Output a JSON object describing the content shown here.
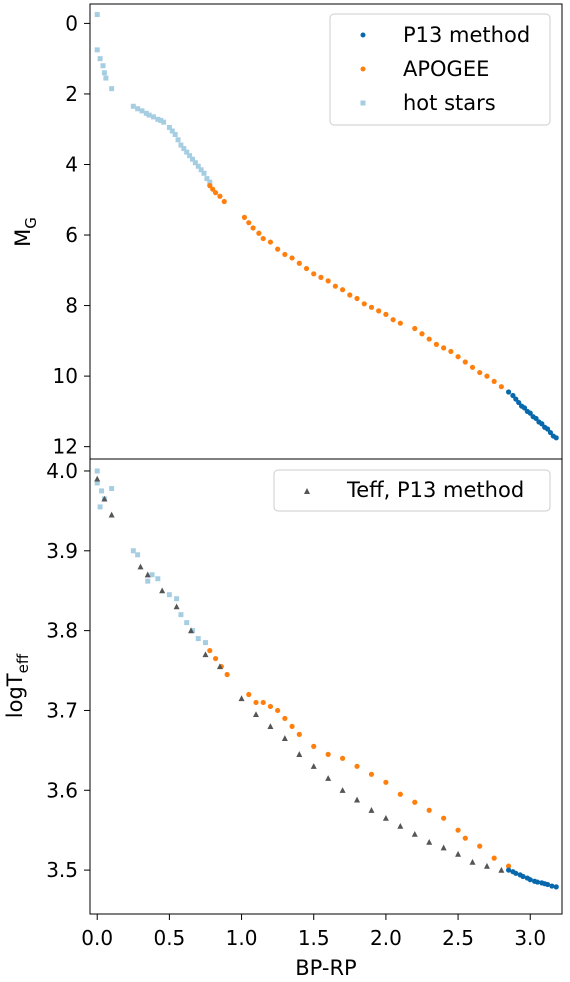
{
  "chart_data": [
    {
      "type": "scatter",
      "ylabel": "M_G",
      "ylabel_main": "M",
      "ylabel_sub": "G",
      "y_inverted": true,
      "xlim": [
        -0.05,
        3.22
      ],
      "ylim": [
        12.35,
        -0.55
      ],
      "yticks": [
        0,
        2,
        4,
        6,
        8,
        10,
        12
      ],
      "yticklabels": [
        "0",
        "2",
        "4",
        "6",
        "8",
        "10",
        "12"
      ],
      "legend": {
        "position": "top-right",
        "entries": [
          "P13 method",
          "APOGEE",
          "hot stars"
        ]
      },
      "series": [
        {
          "name": "hot stars",
          "color": "#a6cee3",
          "marker": "square",
          "x": [
            0.0,
            0.0,
            0.02,
            0.04,
            0.05,
            0.06,
            0.1,
            0.25,
            0.28,
            0.31,
            0.34,
            0.36,
            0.39,
            0.42,
            0.44,
            0.46,
            0.5,
            0.52,
            0.54,
            0.56,
            0.58,
            0.6,
            0.62,
            0.64,
            0.66,
            0.68,
            0.7,
            0.72,
            0.74,
            0.76,
            0.78
          ],
          "y": [
            -0.25,
            0.75,
            1.0,
            1.2,
            1.4,
            1.55,
            1.85,
            2.35,
            2.42,
            2.48,
            2.55,
            2.6,
            2.65,
            2.72,
            2.75,
            2.8,
            2.95,
            3.05,
            3.15,
            3.3,
            3.45,
            3.55,
            3.65,
            3.75,
            3.85,
            3.95,
            4.05,
            4.15,
            4.25,
            4.4,
            4.5
          ]
        },
        {
          "name": "APOGEE",
          "color": "#ff7f0e",
          "marker": "circle",
          "x": [
            0.78,
            0.8,
            0.82,
            0.85,
            0.88,
            1.02,
            1.05,
            1.08,
            1.12,
            1.15,
            1.2,
            1.25,
            1.3,
            1.35,
            1.4,
            1.45,
            1.5,
            1.55,
            1.6,
            1.65,
            1.7,
            1.75,
            1.8,
            1.85,
            1.9,
            1.95,
            2.0,
            2.05,
            2.1,
            2.2,
            2.25,
            2.3,
            2.35,
            2.4,
            2.45,
            2.5,
            2.55,
            2.6,
            2.65,
            2.7,
            2.75,
            2.8
          ],
          "y": [
            4.6,
            4.7,
            4.8,
            4.9,
            5.05,
            5.5,
            5.65,
            5.8,
            5.95,
            6.1,
            6.2,
            6.4,
            6.55,
            6.65,
            6.8,
            6.95,
            7.1,
            7.2,
            7.3,
            7.45,
            7.55,
            7.7,
            7.8,
            7.95,
            8.05,
            8.15,
            8.25,
            8.4,
            8.5,
            8.65,
            8.8,
            8.95,
            9.1,
            9.2,
            9.3,
            9.45,
            9.6,
            9.75,
            9.9,
            10.0,
            10.15,
            10.3
          ]
        },
        {
          "name": "P13 method",
          "color": "#0868ac",
          "marker": "circle",
          "x": [
            2.85,
            2.88,
            2.9,
            2.92,
            2.94,
            2.96,
            2.98,
            3.0,
            3.02,
            3.04,
            3.06,
            3.08,
            3.1,
            3.12,
            3.14,
            3.16,
            3.18
          ],
          "y": [
            10.45,
            10.55,
            10.65,
            10.75,
            10.85,
            10.9,
            11.0,
            11.05,
            11.15,
            11.2,
            11.3,
            11.35,
            11.45,
            11.5,
            11.6,
            11.7,
            11.75
          ]
        }
      ]
    },
    {
      "type": "scatter",
      "xlabel": "BP-RP",
      "ylabel": "logT_eff",
      "ylabel_main": "logT",
      "ylabel_sub": "eff",
      "xlim": [
        -0.05,
        3.22
      ],
      "ylim": [
        3.445,
        4.015
      ],
      "xticks": [
        0.0,
        0.5,
        1.0,
        1.5,
        2.0,
        2.5,
        3.0
      ],
      "xticklabels": [
        "0.0",
        "0.5",
        "1.0",
        "1.5",
        "2.0",
        "2.5",
        "3.0"
      ],
      "yticks": [
        3.5,
        3.6,
        3.7,
        3.8,
        3.9,
        4.0
      ],
      "yticklabels": [
        "3.5",
        "3.6",
        "3.7",
        "3.8",
        "3.9",
        "4.0"
      ],
      "legend": {
        "position": "top-right",
        "entries": [
          "Teff, P13 method"
        ]
      },
      "series": [
        {
          "name": "hot stars",
          "color": "#a6cee3",
          "marker": "square",
          "x": [
            0.0,
            0.0,
            0.02,
            0.03,
            0.05,
            0.1,
            0.25,
            0.28,
            0.35,
            0.38,
            0.42,
            0.5,
            0.55,
            0.58,
            0.62,
            0.66,
            0.7,
            0.75
          ],
          "y": [
            4.0,
            3.985,
            3.955,
            3.975,
            3.965,
            3.978,
            3.9,
            3.895,
            3.862,
            3.87,
            3.865,
            3.845,
            3.84,
            3.82,
            3.81,
            3.8,
            3.79,
            3.785
          ]
        },
        {
          "name": "APOGEE",
          "color": "#ff7f0e",
          "marker": "circle",
          "x": [
            0.78,
            0.82,
            0.86,
            0.9,
            1.05,
            1.1,
            1.15,
            1.2,
            1.25,
            1.3,
            1.35,
            1.4,
            1.5,
            1.6,
            1.7,
            1.8,
            1.9,
            2.0,
            2.1,
            2.2,
            2.3,
            2.4,
            2.5,
            2.55,
            2.65,
            2.75,
            2.85
          ],
          "y": [
            3.775,
            3.765,
            3.755,
            3.745,
            3.72,
            3.71,
            3.71,
            3.705,
            3.7,
            3.69,
            3.68,
            3.67,
            3.655,
            3.645,
            3.64,
            3.63,
            3.62,
            3.61,
            3.595,
            3.585,
            3.575,
            3.565,
            3.55,
            3.54,
            3.53,
            3.515,
            3.505
          ]
        },
        {
          "name": "Teff, P13 method",
          "color": "#555555",
          "marker": "triangle",
          "x": [
            0.0,
            0.05,
            0.1,
            0.3,
            0.35,
            0.45,
            0.55,
            0.65,
            0.75,
            0.85,
            1.0,
            1.1,
            1.2,
            1.3,
            1.4,
            1.5,
            1.6,
            1.7,
            1.8,
            1.9,
            2.0,
            2.1,
            2.2,
            2.3,
            2.4,
            2.5,
            2.6,
            2.7,
            2.8
          ],
          "y": [
            3.99,
            3.965,
            3.945,
            3.88,
            3.87,
            3.85,
            3.83,
            3.8,
            3.77,
            3.755,
            3.715,
            3.695,
            3.68,
            3.665,
            3.645,
            3.63,
            3.615,
            3.6,
            3.588,
            3.575,
            3.565,
            3.555,
            3.545,
            3.535,
            3.528,
            3.52,
            3.51,
            3.505,
            3.5
          ]
        },
        {
          "name": "P13 method",
          "color": "#0868ac",
          "marker": "circle",
          "x": [
            2.85,
            2.88,
            2.9,
            2.93,
            2.95,
            2.98,
            3.0,
            3.03,
            3.05,
            3.08,
            3.1,
            3.12,
            3.15,
            3.18
          ],
          "y": [
            3.5,
            3.498,
            3.496,
            3.494,
            3.492,
            3.49,
            3.488,
            3.486,
            3.485,
            3.484,
            3.483,
            3.482,
            3.48,
            3.479
          ]
        }
      ]
    }
  ]
}
